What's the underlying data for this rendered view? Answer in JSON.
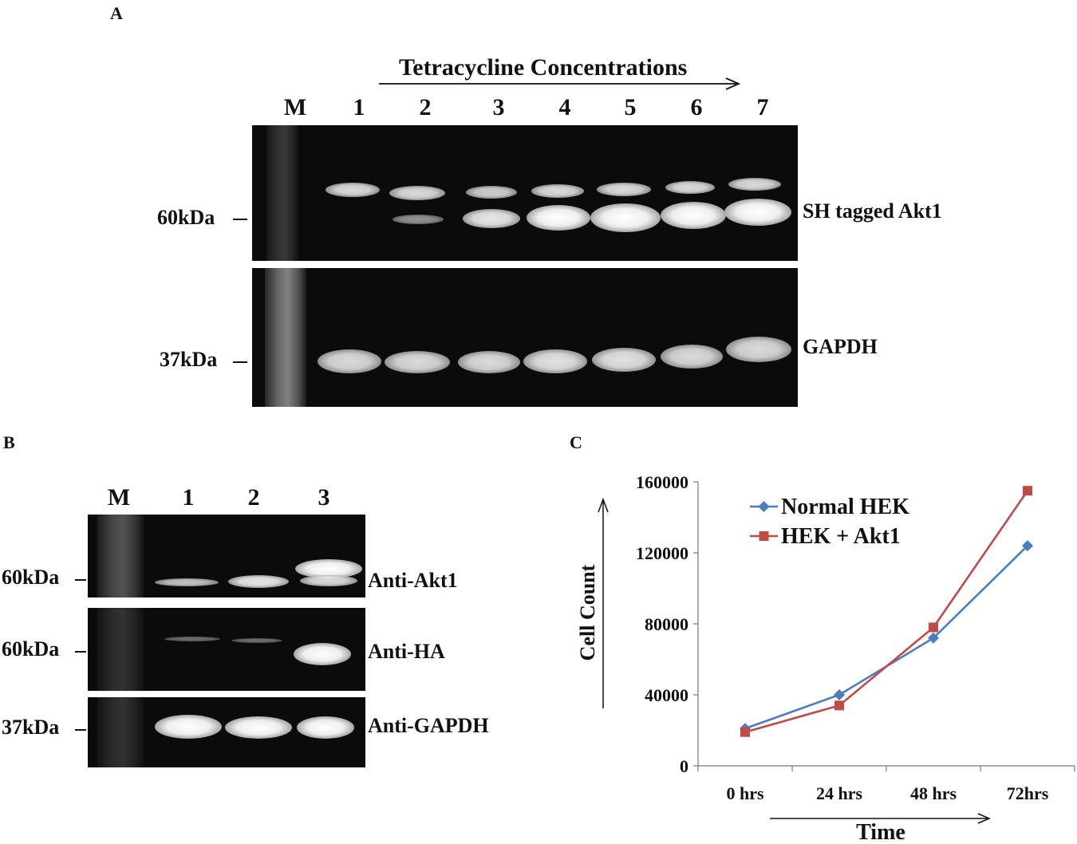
{
  "panel_a": {
    "label": "A",
    "header": "Tetracycline Concentrations",
    "lanes": [
      "M",
      "1",
      "2",
      "3",
      "4",
      "5",
      "6",
      "7"
    ],
    "top_blot_label": "SH tagged Akt1",
    "bottom_blot_label": "GAPDH",
    "top_marker": "60kDa",
    "bottom_marker": "37kDa"
  },
  "panel_b": {
    "label": "B",
    "lanes": [
      "M",
      "1",
      "2",
      "3"
    ],
    "blots": [
      {
        "label": "Anti-Akt1",
        "marker": "60kDa"
      },
      {
        "label": "Anti-HA",
        "marker": "60kDa"
      },
      {
        "label": "Anti-GAPDH",
        "marker": "37kDa"
      }
    ]
  },
  "panel_c": {
    "label": "C"
  },
  "chart_data": {
    "type": "line",
    "title": "",
    "xlabel": "Time",
    "ylabel": "Cell Count",
    "categories": [
      "0 hrs",
      "24 hrs",
      "48 hrs",
      "72hrs"
    ],
    "ylim": [
      0,
      160000
    ],
    "yticks": [
      0,
      40000,
      80000,
      120000,
      160000
    ],
    "grid": false,
    "legend_position": "top-left",
    "series": [
      {
        "name": "Normal HEK",
        "values": [
          21000,
          40000,
          72000,
          124000
        ],
        "color": "#4a7ebb",
        "marker": "diamond"
      },
      {
        "name": "HEK + Akt1",
        "values": [
          19000,
          34000,
          78000,
          155000
        ],
        "color": "#be4b48",
        "marker": "square"
      }
    ]
  }
}
